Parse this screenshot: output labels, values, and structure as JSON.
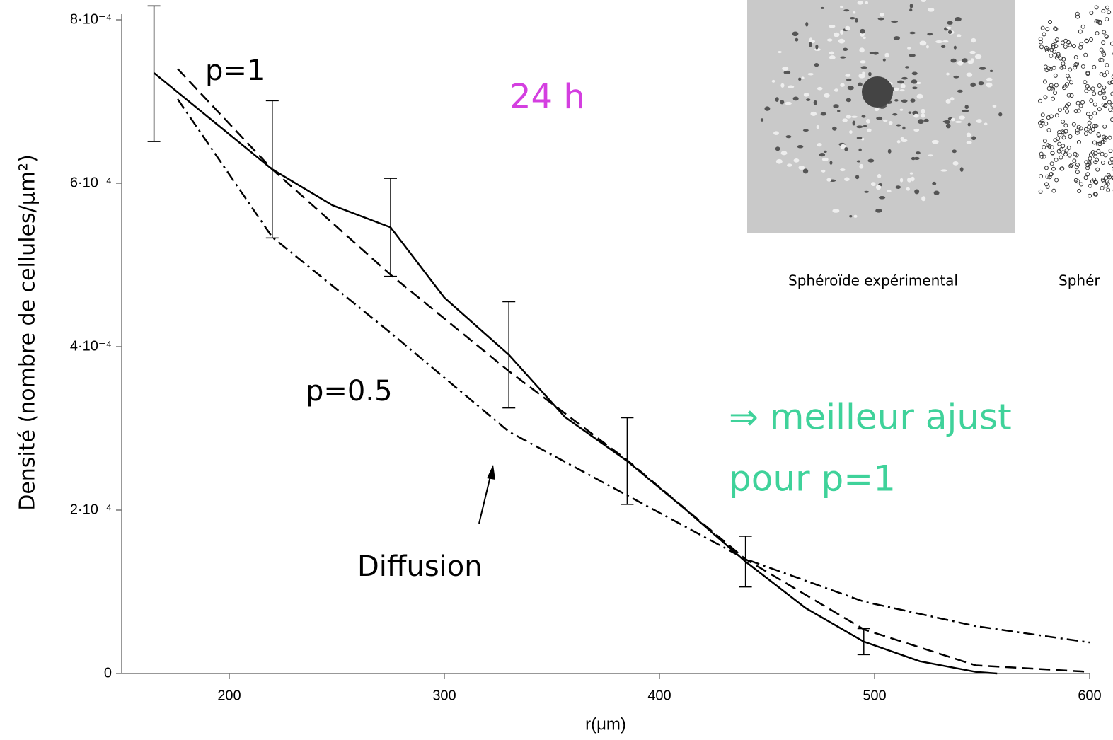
{
  "chart_data": {
    "type": "line",
    "y_label": "Densité (nombre de cellules/μm²)",
    "x_label": "r(μm)",
    "xlim": [
      150,
      600
    ],
    "xticks": [
      200,
      300,
      400,
      500,
      600
    ],
    "ylim": [
      0,
      0.0008
    ],
    "yticks": [
      0,
      {
        "value": 0.0002,
        "label": "2·10⁻⁴"
      },
      {
        "value": 0.0004,
        "label": "4·10⁻⁴"
      },
      {
        "value": 0.0006,
        "label": "6·10⁻⁴"
      },
      {
        "value": 0.0008,
        "label": "8·10⁻⁴"
      }
    ],
    "series": [
      {
        "style": "errorbar",
        "color": "#000000",
        "x": [
          165,
          220,
          275,
          330,
          385,
          440,
          495
        ],
        "values": [
          0.000734,
          0.000617,
          0.000546,
          0.00039,
          0.00026,
          0.000137,
          3.9e-05
        ],
        "errors": [
          8.3e-05,
          8.4e-05,
          6e-05,
          6.5e-05,
          5.3e-05,
          3.1e-05,
          1.6e-05
        ]
      },
      {
        "style": "solid",
        "color": "#000000",
        "x": [
          165,
          220,
          248,
          275,
          300,
          330,
          356,
          385,
          412,
          440,
          468,
          495,
          521,
          547,
          557
        ],
        "values": [
          0.000735,
          0.000617,
          0.000573,
          0.000546,
          0.00046,
          0.00039,
          0.000314,
          0.00026,
          0.000201,
          0.000137,
          8e-05,
          3.9e-05,
          1.5e-05,
          2e-06,
          0
        ]
      },
      {
        "name": "p=1",
        "style": "dashed",
        "color": "#000000",
        "x": [
          176,
          220,
          275,
          330,
          385,
          440,
          495,
          547,
          600
        ],
        "values": [
          0.00074,
          0.000617,
          0.000488,
          0.00037,
          0.000261,
          0.00014,
          5.4e-05,
          1e-05,
          2e-06
        ]
      },
      {
        "name": "p=0.5",
        "style": "dashdot",
        "color": "#000000",
        "x": [
          176,
          220,
          275,
          330,
          385,
          440,
          495,
          547,
          600
        ],
        "values": [
          0.000703,
          0.000534,
          0.000417,
          0.000296,
          0.000218,
          0.00014,
          8.8e-05,
          5.8e-05,
          3.8e-05
        ]
      }
    ],
    "annotations": {
      "time": "24 h",
      "diffusion": "Diffusion",
      "conclusion_1": "⇒  meilleur  ajust",
      "conclusion_2": "pour p=1"
    },
    "images": {
      "caption_1": "Sphéroïde expérimental",
      "caption_2": "Sphér"
    }
  }
}
